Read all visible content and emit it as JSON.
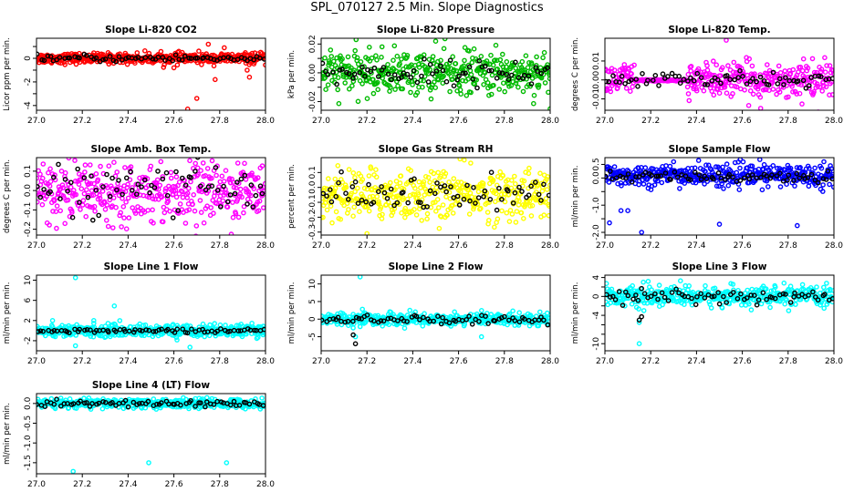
{
  "page": {
    "title": "SPL_070127  2.5 Min. Slope Diagnostics"
  },
  "chart_data": [
    {
      "type": "scatter",
      "title": "Slope Li-820 CO2",
      "ylabel": "Licor ppm per min.",
      "xlim": [
        27.0,
        28.0
      ],
      "ylim": [
        -4.4,
        1.7
      ],
      "xticks": [
        27.0,
        27.2,
        27.4,
        27.6,
        27.8,
        28.0
      ],
      "yticks": [
        -4,
        -3,
        -2,
        -1,
        0,
        1
      ],
      "yticklabels": [
        "-4",
        "",
        "-2",
        "",
        "0",
        ""
      ],
      "series": [
        {
          "name": "all",
          "color": "#ff0000",
          "n": 420,
          "center": 0.0,
          "spread": 0.22,
          "outliers": [
            [
              27.66,
              -4.3
            ],
            [
              27.7,
              -3.4
            ],
            [
              27.6,
              -0.8
            ],
            [
              27.75,
              1.2
            ],
            [
              27.82,
              0.9
            ],
            [
              27.93,
              -1.6
            ],
            [
              27.78,
              -1.8
            ],
            [
              27.92,
              -1.0
            ]
          ]
        },
        {
          "name": "subset",
          "color": "#000000",
          "n": 70,
          "center": 0.0,
          "spread": 0.15,
          "outliers": []
        }
      ]
    },
    {
      "type": "scatter",
      "title": "Slope Li-820 Pressure",
      "ylabel": "kPa per min.",
      "xlim": [
        27.0,
        28.0
      ],
      "ylim": [
        -0.026,
        0.024
      ],
      "xticks": [
        27.0,
        27.2,
        27.4,
        27.6,
        27.8,
        28.0
      ],
      "yticks": [
        -0.02,
        -0.01,
        0.0,
        0.01,
        0.02
      ],
      "yticklabels": [
        "-0.02",
        "",
        "0.00",
        "",
        "0.02"
      ],
      "series": [
        {
          "name": "all",
          "color": "#00bb00",
          "n": 420,
          "center": 0.0,
          "spread": 0.0075,
          "outliers": [
            [
              28.0,
              -0.025
            ],
            [
              27.5,
              0.022
            ]
          ]
        },
        {
          "name": "subset",
          "color": "#000000",
          "n": 70,
          "center": 0.0,
          "spread": 0.004,
          "outliers": []
        }
      ]
    },
    {
      "type": "scatter",
      "title": "Slope Li-820 Temp.",
      "ylabel": "degrees C per min.",
      "xlim": [
        27.0,
        28.0
      ],
      "ylim": [
        -0.016,
        0.022
      ],
      "xticks": [
        27.0,
        27.2,
        27.4,
        27.6,
        27.8,
        28.0
      ],
      "yticks": [
        -0.01,
        0.0,
        0.01
      ],
      "yticklabels": [
        "-0.01",
        "0.00",
        "0.01"
      ],
      "series": [
        {
          "name": "all",
          "color": "#ff00ff",
          "n": 420,
          "center": 0.0,
          "spread": 0.0045,
          "outliers": [
            [
              27.53,
              0.021
            ],
            [
              27.68,
              -0.015
            ]
          ],
          "flat": [
            27.13,
            27.36,
            -0.0002
          ]
        },
        {
          "name": "subset",
          "color": "#000000",
          "n": 70,
          "center": 0.0,
          "spread": 0.002,
          "outliers": []
        }
      ]
    },
    {
      "type": "scatter",
      "title": "Slope Amb. Box Temp.",
      "ylabel": "degrees C per min.",
      "xlim": [
        27.0,
        28.0
      ],
      "ylim": [
        -0.23,
        0.17
      ],
      "xticks": [
        27.0,
        27.2,
        27.4,
        27.6,
        27.8,
        28.0
      ],
      "yticks": [
        -0.2,
        -0.1,
        0.0,
        0.1
      ],
      "yticklabels": [
        "-0.2",
        "-0.1",
        "0.0",
        "0.1"
      ],
      "series": [
        {
          "name": "all",
          "color": "#ff00ff",
          "n": 420,
          "center": 0.0,
          "spread": 0.075,
          "outliers": []
        },
        {
          "name": "subset",
          "color": "#000000",
          "n": 70,
          "center": 0.0,
          "spread": 0.06,
          "outliers": []
        }
      ]
    },
    {
      "type": "scatter",
      "title": "Slope Gas Stream RH",
      "ylabel": "percent per min.",
      "xlim": [
        27.0,
        28.0
      ],
      "ylim": [
        -0.32,
        0.2
      ],
      "xticks": [
        27.0,
        27.2,
        27.4,
        27.6,
        27.8,
        28.0
      ],
      "yticks": [
        -0.3,
        -0.2,
        -0.1,
        0.0,
        0.1
      ],
      "yticklabels": [
        "-0.3",
        "-0.2",
        "-0.1",
        "0.0",
        "0.1"
      ],
      "series": [
        {
          "name": "all",
          "color": "#ffff00",
          "n": 420,
          "center": -0.05,
          "spread": 0.085,
          "outliers": [
            [
              27.2,
              -0.31
            ]
          ]
        },
        {
          "name": "subset",
          "color": "#000000",
          "n": 70,
          "center": -0.05,
          "spread": 0.06,
          "outliers": []
        }
      ]
    },
    {
      "type": "scatter",
      "title": "Slope Sample Flow",
      "ylabel": "ml/min per min.",
      "xlim": [
        27.0,
        28.0
      ],
      "ylim": [
        -2.1,
        0.75
      ],
      "xticks": [
        27.0,
        27.2,
        27.4,
        27.6,
        27.8,
        28.0
      ],
      "yticks": [
        -2.0,
        -1.5,
        -1.0,
        -0.5,
        0.0,
        0.5
      ],
      "yticklabels": [
        "-2.0",
        "",
        "-1.0",
        "",
        "0.0",
        "0.5"
      ],
      "series": [
        {
          "name": "all",
          "color": "#0000ff",
          "n": 420,
          "center": 0.1,
          "spread": 0.2,
          "outliers": [
            [
              27.02,
              -1.65
            ],
            [
              27.07,
              -1.2
            ],
            [
              27.1,
              -1.2
            ],
            [
              27.16,
              -2.0
            ],
            [
              27.5,
              -1.7
            ],
            [
              27.84,
              -1.75
            ],
            [
              27.3,
              0.6
            ]
          ]
        },
        {
          "name": "subset",
          "color": "#000000",
          "n": 70,
          "center": 0.05,
          "spread": 0.1,
          "outliers": []
        }
      ]
    },
    {
      "type": "scatter",
      "title": "Slope Line 1 Flow",
      "ylabel": "ml/min per min.",
      "xlim": [
        27.0,
        28.0
      ],
      "ylim": [
        -4.0,
        11.0
      ],
      "xticks": [
        27.0,
        27.2,
        27.4,
        27.6,
        27.8,
        28.0
      ],
      "yticks": [
        -2,
        2,
        6,
        10
      ],
      "yticklabels": [
        "-2",
        "2",
        "6",
        "10"
      ],
      "series": [
        {
          "name": "all",
          "color": "#00ffff",
          "n": 420,
          "center": 0.0,
          "spread": 0.6,
          "outliers": [
            [
              27.17,
              10.5
            ],
            [
              27.34,
              4.9
            ],
            [
              27.67,
              -3.3
            ],
            [
              27.17,
              -3.0
            ],
            [
              27.25,
              2.0
            ],
            [
              27.07,
              2.0
            ]
          ]
        },
        {
          "name": "subset",
          "color": "#000000",
          "n": 70,
          "center": 0.0,
          "spread": 0.2,
          "outliers": []
        }
      ]
    },
    {
      "type": "scatter",
      "title": "Slope Line 2 Flow",
      "ylabel": "ml/min per min.",
      "xlim": [
        27.0,
        28.0
      ],
      "ylim": [
        -9.0,
        12.5
      ],
      "xticks": [
        27.0,
        27.2,
        27.4,
        27.6,
        27.8,
        28.0
      ],
      "yticks": [
        -5,
        0,
        5,
        10
      ],
      "yticklabels": [
        "-5",
        "0",
        "5",
        "10"
      ],
      "series": [
        {
          "name": "all",
          "color": "#00ffff",
          "n": 420,
          "center": 0.0,
          "spread": 0.9,
          "outliers": [
            [
              27.17,
              12.0
            ],
            [
              27.15,
              -5.0
            ],
            [
              27.14,
              -2.5
            ],
            [
              27.7,
              -5.0
            ],
            [
              27.18,
              2.8
            ]
          ]
        },
        {
          "name": "subset",
          "color": "#000000",
          "n": 70,
          "center": 0.0,
          "spread": 0.6,
          "outliers": [
            [
              27.15,
              -7.0
            ],
            [
              27.14,
              -4.5
            ]
          ]
        }
      ]
    },
    {
      "type": "scatter",
      "title": "Slope Line 3 Flow",
      "ylabel": "ml/min per min.",
      "xlim": [
        27.0,
        28.0
      ],
      "ylim": [
        -11.5,
        4.5
      ],
      "xticks": [
        27.0,
        27.2,
        27.4,
        27.6,
        27.8,
        28.0
      ],
      "yticks": [
        -10,
        -8,
        -6,
        -4,
        -2,
        0,
        2,
        4
      ],
      "yticklabels": [
        "-10",
        "",
        "",
        "-4",
        "",
        "0",
        "",
        "4"
      ],
      "series": [
        {
          "name": "all",
          "color": "#00ffff",
          "n": 420,
          "center": 0.0,
          "spread": 1.0,
          "outliers": [
            [
              27.15,
              -10.0
            ],
            [
              27.15,
              -5.5
            ],
            [
              27.33,
              3.3
            ],
            [
              27.17,
              -3.0
            ]
          ]
        },
        {
          "name": "subset",
          "color": "#000000",
          "n": 70,
          "center": 0.0,
          "spread": 0.7,
          "outliers": [
            [
              27.15,
              -5.0
            ],
            [
              27.16,
              -4.3
            ]
          ]
        }
      ]
    },
    {
      "type": "scatter",
      "title": "Slope Line 4 (LT) Flow",
      "ylabel": "ml/min per min.",
      "xlim": [
        27.0,
        28.0
      ],
      "ylim": [
        -1.78,
        0.25
      ],
      "xticks": [
        27.0,
        27.2,
        27.4,
        27.6,
        27.8,
        28.0
      ],
      "yticks": [
        -1.5,
        -1.0,
        -0.5,
        0.0
      ],
      "yticklabels": [
        "-1.5",
        "-1.0",
        "-0.5",
        "0.0"
      ],
      "series": [
        {
          "name": "all",
          "color": "#00ffff",
          "n": 420,
          "center": 0.0,
          "spread": 0.06,
          "outliers": [
            [
              27.16,
              -1.72
            ],
            [
              27.49,
              -1.5
            ],
            [
              27.83,
              -1.5
            ]
          ]
        },
        {
          "name": "subset",
          "color": "#000000",
          "n": 70,
          "center": 0.0,
          "spread": 0.04,
          "outliers": []
        }
      ]
    }
  ]
}
